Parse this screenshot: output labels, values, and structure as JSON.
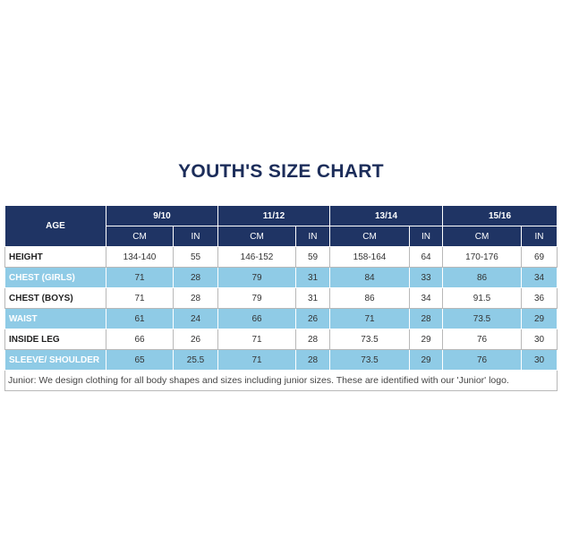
{
  "header": {
    "title": "YOUTH'S SIZE CHART"
  },
  "table": {
    "corner": "AGE",
    "groups": [
      {
        "label": "9/10",
        "units": [
          "CM",
          "IN"
        ]
      },
      {
        "label": "11/12",
        "units": [
          "CM",
          "IN"
        ]
      },
      {
        "label": "13/14",
        "units": [
          "CM",
          "IN"
        ]
      },
      {
        "label": "15/16",
        "units": [
          "CM",
          "IN"
        ]
      }
    ],
    "rows": [
      [
        "HEIGHT",
        "134-140",
        "55",
        "146-152",
        "59",
        "158-164",
        "64",
        "170-176",
        "69"
      ],
      [
        "CHEST (GIRLS)",
        "71",
        "28",
        "79",
        "31",
        "84",
        "33",
        "86",
        "34"
      ],
      [
        "CHEST (BOYS)",
        "71",
        "28",
        "79",
        "31",
        "86",
        "34",
        "91.5",
        "36"
      ],
      [
        "WAIST",
        "61",
        "24",
        "66",
        "26",
        "71",
        "28",
        "73.5",
        "29"
      ],
      [
        "INSIDE LEG",
        "66",
        "26",
        "71",
        "28",
        "73.5",
        "29",
        "76",
        "30"
      ],
      [
        "SLEEVE/ SHOULDER",
        "65",
        "25.5",
        "71",
        "28",
        "73.5",
        "29",
        "76",
        "30"
      ]
    ],
    "note": "Junior: We design clothing for all body shapes and sizes including junior sizes. These are identified with our 'Junior' logo."
  }
}
